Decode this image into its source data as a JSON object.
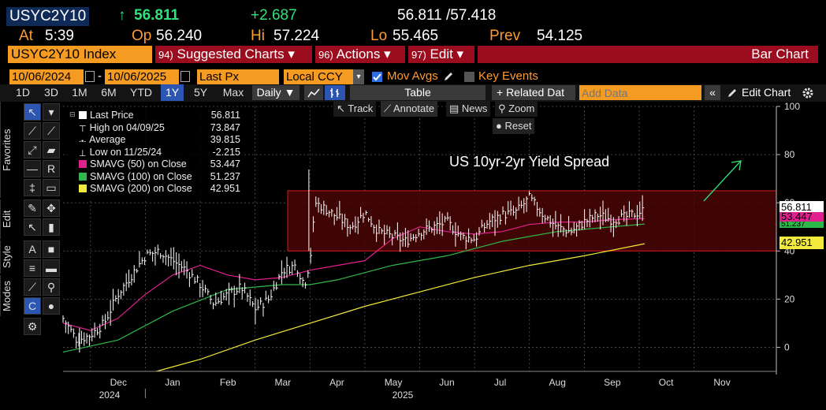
{
  "header": {
    "ticker": "USYC2Y10",
    "arrow": "↑",
    "last": "56.811",
    "change": "+2.687",
    "bid_ask": "56.811 /57.418",
    "at_label": "At",
    "at_value": "5:39",
    "op_label": "Op",
    "op_value": "56.240",
    "hi_label": "Hi",
    "hi_value": "57.224",
    "lo_label": "Lo",
    "lo_value": "55.465",
    "prev_label": "Prev",
    "prev_value": "54.125"
  },
  "menubar": {
    "security": "USYC2Y10 Index",
    "suggested_num": "94)",
    "suggested": "Suggested Charts ▾",
    "actions_num": "96)",
    "actions": "Actions ▾",
    "edit_num": "97)",
    "edit": "Edit ▾",
    "chart_type": "Bar Chart"
  },
  "settings": {
    "start_date": "10/06/2024",
    "dash": "-",
    "end_date": "10/06/2025",
    "field": "Last Px",
    "currency": "Local CCY",
    "mov_avgs": "Mov Avgs",
    "key_events": "Key Events"
  },
  "toolbar": {
    "periods": [
      "1D",
      "3D",
      "1M",
      "6M",
      "YTD",
      "1Y",
      "5Y",
      "Max"
    ],
    "active_period": "1Y",
    "frequency": "Daily ▼",
    "table": "Table",
    "related": "+ Related Dat",
    "add_data_placeholder": "Add Data",
    "collapse": "«",
    "edit_chart": "Edit Chart"
  },
  "side_tabs": [
    "Favorites",
    "Edit",
    "Style",
    "Modes"
  ],
  "chart_controls": {
    "track": "Track",
    "annotate": "Annotate",
    "news": "News",
    "zoom": "Zoom",
    "reset": "Reset"
  },
  "legend": {
    "rows": [
      {
        "label": "Last Price",
        "value": "56.811",
        "color": "#ffffff",
        "kind": "box"
      },
      {
        "label": "High on 04/09/25",
        "value": "73.847",
        "color": "#bbbbbb",
        "kind": "high"
      },
      {
        "label": "Average",
        "value": "39.815",
        "color": "#bbbbbb",
        "kind": "avg"
      },
      {
        "label": "Low on 11/25/24",
        "value": "-2.215",
        "color": "#bbbbbb",
        "kind": "low"
      },
      {
        "label": "SMAVG (50)  on Close",
        "value": "53.447",
        "color": "#e0208e",
        "kind": "box"
      },
      {
        "label": "SMAVG (100)  on Close",
        "value": "51.237",
        "color": "#2eb84a",
        "kind": "box"
      },
      {
        "label": "SMAVG (200)  on Close",
        "value": "42.951",
        "color": "#f2ea3c",
        "kind": "box"
      }
    ]
  },
  "annotation": {
    "text": "US 10yr-2yr Yield Spread"
  },
  "price_tags": {
    "last": "56.811",
    "sma50": "53.447",
    "sma100": "51.237",
    "sma200": "42.951"
  },
  "colors": {
    "accent_orange": "#f59b22",
    "menu_red": "#9b0c1e",
    "price": "#ffffff",
    "sma50": "#e0208e",
    "sma100": "#2eb84a",
    "sma200": "#f2ea3c",
    "band_fill": "#4a0606",
    "band_line": "#d91a1a",
    "arrow_green": "#2ee37a"
  },
  "chart_data": {
    "type": "bar",
    "title": "",
    "xlabel": "",
    "ylabel": "",
    "ylim": [
      -10,
      100
    ],
    "y_ticks": [
      0,
      20,
      40,
      60,
      80,
      100
    ],
    "x_tick_labels": [
      "Dec",
      "Jan",
      "Feb",
      "Mar",
      "Apr",
      "May",
      "Jun",
      "Jul",
      "Aug",
      "Sep",
      "Oct",
      "Nov"
    ],
    "x_year_labels": [
      "2024",
      "2025"
    ],
    "x_month_index": [
      1,
      2,
      3,
      4,
      5,
      6,
      7,
      8,
      9,
      10,
      11,
      12
    ],
    "band": {
      "low": 40,
      "high": 65
    },
    "series": [
      {
        "name": "Last Price",
        "x": [
          0,
          0.25,
          0.5,
          0.75,
          1,
          1.25,
          1.5,
          1.75,
          2,
          2.25,
          2.5,
          2.75,
          3,
          3.25,
          3.5,
          3.75,
          4,
          4.25,
          4.4,
          4.5,
          4.6,
          4.75,
          5,
          5.25,
          5.5,
          5.75,
          6,
          6.25,
          6.5,
          6.75,
          7,
          7.25,
          7.5,
          7.75,
          8,
          8.25,
          8.5,
          8.75,
          9,
          9.25,
          9.5,
          9.75,
          10,
          10.25,
          10.6
        ],
        "values": [
          12,
          3,
          5,
          10,
          22,
          30,
          38,
          40,
          36,
          32,
          26,
          18,
          22,
          25,
          16,
          20,
          32,
          34,
          26,
          36,
          60,
          58,
          54,
          50,
          56,
          48,
          46,
          44,
          48,
          50,
          52,
          46,
          45,
          52,
          55,
          56,
          62,
          55,
          50,
          48,
          52,
          55,
          53,
          54,
          57
        ]
      },
      {
        "name": "SMAVG (50) on Close",
        "x": [
          0,
          0.5,
          1,
          1.5,
          2,
          2.5,
          3,
          3.5,
          4,
          4.5,
          5,
          5.5,
          6,
          6.5,
          7,
          7.5,
          8,
          8.5,
          9,
          9.5,
          10,
          10.6
        ],
        "values": [
          10,
          7,
          12,
          22,
          30,
          34,
          30,
          28,
          29,
          32,
          34,
          36,
          45,
          50,
          48,
          47,
          48,
          51,
          52,
          52,
          53,
          53.4
        ]
      },
      {
        "name": "SMAVG (100) on Close",
        "x": [
          0,
          1,
          2,
          3,
          4,
          4.5,
          5,
          6,
          7,
          8,
          8.5,
          9,
          10,
          10.6
        ],
        "values": [
          -2,
          3,
          15,
          24,
          26,
          26,
          28,
          34,
          38,
          44,
          46,
          48,
          50,
          51.2
        ]
      },
      {
        "name": "SMAVG (200) on Close",
        "x": [
          1.7,
          2.5,
          3.5,
          4.5,
          5.5,
          6.5,
          7.5,
          8.5,
          9.5,
          10.6
        ],
        "values": [
          -10,
          -5,
          3,
          10,
          17,
          23,
          29,
          34,
          38,
          43
        ]
      }
    ]
  }
}
